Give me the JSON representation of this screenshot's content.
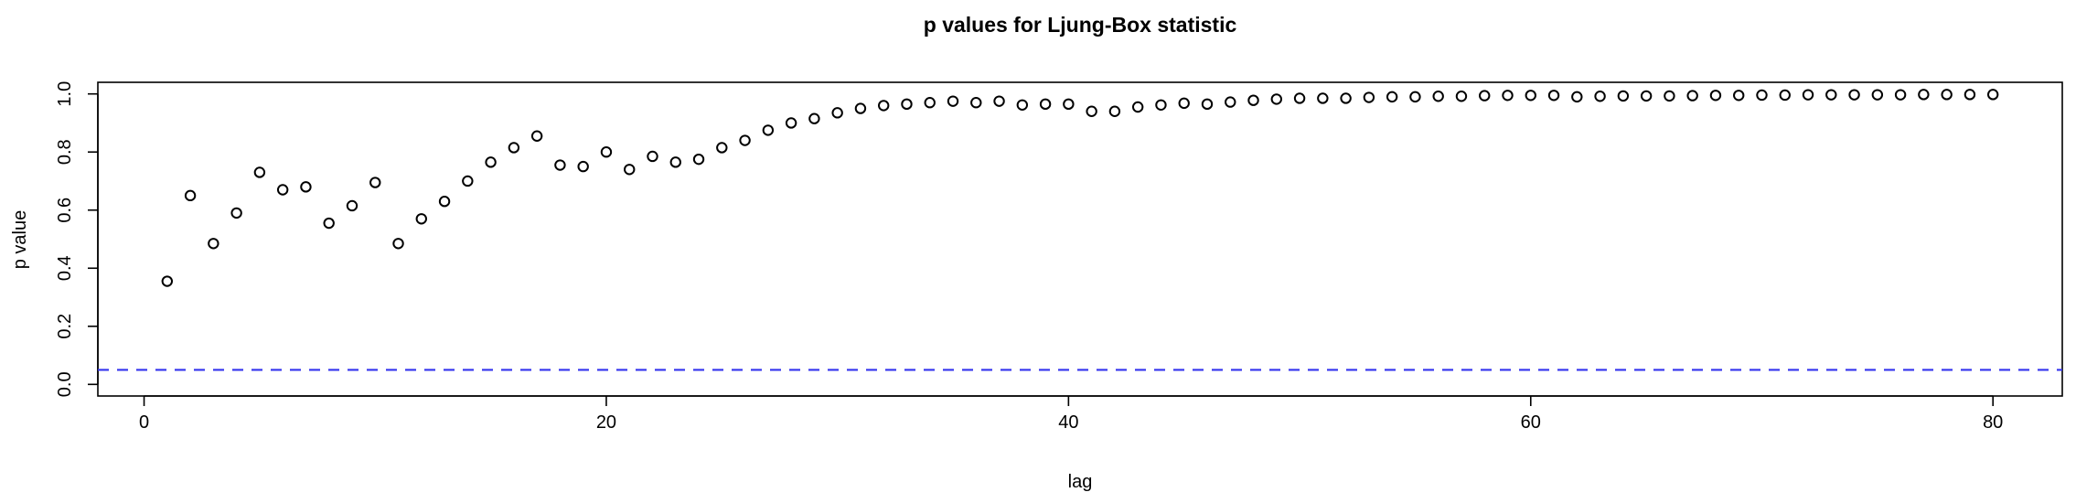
{
  "chart_data": {
    "type": "scatter",
    "title": "p values for Ljung-Box statistic",
    "xlabel": "lag",
    "ylabel": "p value",
    "xlim": [
      -2,
      83
    ],
    "ylim": [
      -0.04,
      1.04
    ],
    "x_ticks": [
      0,
      20,
      40,
      60,
      80
    ],
    "y_ticks": [
      0.0,
      0.2,
      0.4,
      0.6,
      0.8,
      1.0
    ],
    "x_tick_labels": [
      "0",
      "20",
      "40",
      "60",
      "80"
    ],
    "y_tick_labels": [
      "0.0",
      "0.2",
      "0.4",
      "0.6",
      "0.8",
      "1.0"
    ],
    "grid": false,
    "reference_line": {
      "y": 0.05,
      "style": "dashed",
      "color": "#3333ee"
    },
    "marker": "open-circle",
    "series": [
      {
        "x": [
          1,
          2,
          3,
          4,
          5,
          6,
          7,
          8,
          9,
          10,
          11,
          12,
          13,
          14,
          15,
          16,
          17,
          18,
          19,
          20,
          21,
          22,
          23,
          24,
          25,
          26,
          27,
          28,
          29,
          30,
          31,
          32,
          33,
          34,
          35,
          36,
          37,
          38,
          39,
          40,
          41,
          42,
          43,
          44,
          45,
          46,
          47,
          48,
          49,
          50,
          51,
          52,
          53,
          54,
          55,
          56,
          57,
          58,
          59,
          60,
          61,
          62,
          63,
          64,
          65,
          66,
          67,
          68,
          69,
          70,
          71,
          72,
          73,
          74,
          75,
          76,
          77,
          78,
          79,
          80
        ],
        "y": [
          0.355,
          0.65,
          0.485,
          0.59,
          0.73,
          0.67,
          0.68,
          0.555,
          0.615,
          0.695,
          0.485,
          0.57,
          0.63,
          0.7,
          0.765,
          0.815,
          0.855,
          0.755,
          0.75,
          0.8,
          0.74,
          0.785,
          0.765,
          0.775,
          0.815,
          0.84,
          0.875,
          0.9,
          0.915,
          0.935,
          0.95,
          0.96,
          0.965,
          0.97,
          0.975,
          0.97,
          0.975,
          0.962,
          0.965,
          0.965,
          0.94,
          0.94,
          0.955,
          0.962,
          0.968,
          0.965,
          0.972,
          0.978,
          0.982,
          0.985,
          0.985,
          0.985,
          0.988,
          0.99,
          0.99,
          0.992,
          0.992,
          0.994,
          0.995,
          0.995,
          0.995,
          0.99,
          0.992,
          0.993,
          0.993,
          0.993,
          0.994,
          0.995,
          0.995,
          0.996,
          0.996,
          0.997,
          0.997,
          0.997,
          0.997,
          0.997,
          0.998,
          0.998,
          0.998,
          0.998
        ]
      }
    ]
  }
}
